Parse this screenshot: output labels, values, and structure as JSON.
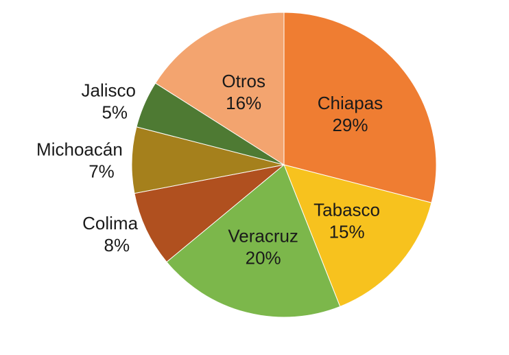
{
  "chart_data": {
    "type": "pie",
    "categories": [
      "Chiapas",
      "Tabasco",
      "Veracruz",
      "Colima",
      "Michoacán",
      "Jalisco",
      "Otros"
    ],
    "values": [
      29,
      15,
      20,
      8,
      7,
      5,
      16
    ],
    "value_labels": [
      "29%",
      "15%",
      "20%",
      "8%",
      "7%",
      "5%",
      "16%"
    ],
    "colors": [
      "#ef7d32",
      "#f7c21e",
      "#7cb74b",
      "#b0501f",
      "#a5801c",
      "#4e7a33",
      "#f3a46f"
    ]
  }
}
